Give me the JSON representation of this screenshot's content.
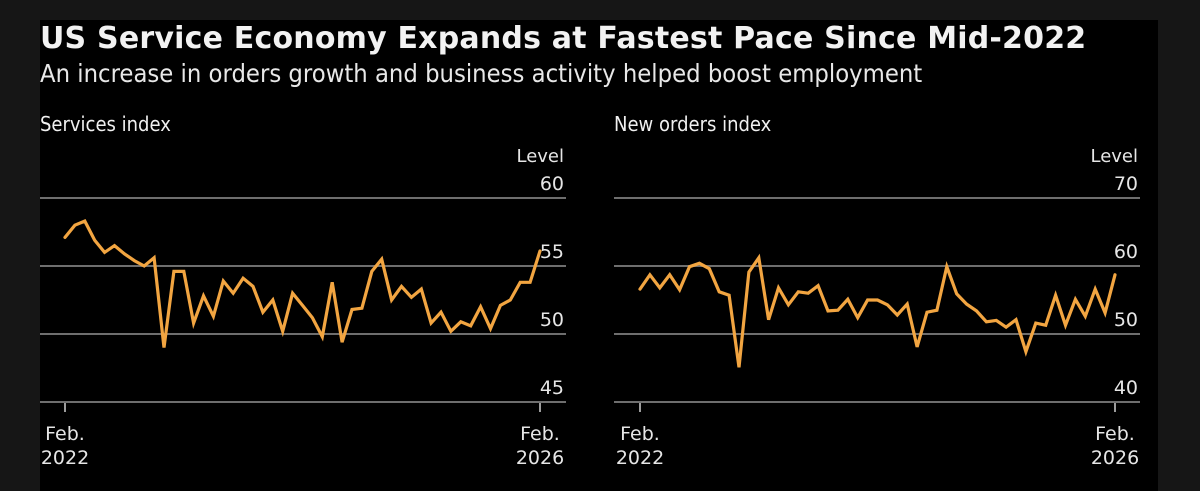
{
  "header": {
    "title": "US Service Economy Expands at Fastest Pace Since Mid-2022",
    "subtitle": "An increase in orders growth and business activity helped boost employment"
  },
  "colors": {
    "line": "#f2a541",
    "gridline": "#6e6e6e",
    "background": "#000000",
    "page_background": "#161616",
    "text": "#f0f0f0"
  },
  "chart_data": [
    {
      "type": "line",
      "title": "Services index",
      "ylabel": "Level",
      "xlabel": "",
      "ylim": [
        45,
        60
      ],
      "yticks": [
        "60",
        "55",
        "50",
        "45"
      ],
      "ytick_values": [
        60,
        55,
        50,
        45
      ],
      "xticks": [
        {
          "line1": "Feb.",
          "line2": "2022",
          "index": 0
        },
        {
          "line1": "Feb.",
          "line2": "2026",
          "index": 48
        }
      ],
      "grid": true,
      "legend": "none",
      "x_start": "Feb. 2022",
      "x_end": "Feb. 2026",
      "frequency": "monthly",
      "series": [
        {
          "name": "Services index",
          "values": [
            57.1,
            58.0,
            58.3,
            56.9,
            56.0,
            56.5,
            55.9,
            55.4,
            55.0,
            55.6,
            49.0,
            54.6,
            54.6,
            50.8,
            52.8,
            51.3,
            53.9,
            53.0,
            54.1,
            53.5,
            51.6,
            52.5,
            50.2,
            53.0,
            52.1,
            51.2,
            49.8,
            53.8,
            49.4,
            51.8,
            51.9,
            54.6,
            55.5,
            52.5,
            53.5,
            52.7,
            53.3,
            50.8,
            51.6,
            50.2,
            50.9,
            50.6,
            52.0,
            50.4,
            52.1,
            52.5,
            53.8,
            53.8,
            56.1
          ]
        }
      ]
    },
    {
      "type": "line",
      "title": "New orders index",
      "ylabel": "Level",
      "xlabel": "",
      "ylim": [
        40,
        70
      ],
      "yticks": [
        "70",
        "60",
        "50",
        "40"
      ],
      "ytick_values": [
        70,
        60,
        50,
        40
      ],
      "xticks": [
        {
          "line1": "Feb.",
          "line2": "2022",
          "index": 0
        },
        {
          "line1": "Feb.",
          "line2": "2026",
          "index": 48
        }
      ],
      "grid": true,
      "legend": "none",
      "x_start": "Feb. 2022",
      "x_end": "Feb. 2026",
      "frequency": "monthly",
      "series": [
        {
          "name": "New orders index",
          "values": [
            56.6,
            58.7,
            56.8,
            58.7,
            56.5,
            59.9,
            60.4,
            59.6,
            56.2,
            55.7,
            45.1,
            59.1,
            61.2,
            52.1,
            56.8,
            54.3,
            56.2,
            56.0,
            57.1,
            53.4,
            53.5,
            55.1,
            52.4,
            55.0,
            55.0,
            54.3,
            52.8,
            54.4,
            48.1,
            53.2,
            53.5,
            59.9,
            55.9,
            54.4,
            53.4,
            51.8,
            52.0,
            51.0,
            52.1,
            47.4,
            51.6,
            51.3,
            55.7,
            51.3,
            55.1,
            52.6,
            56.6,
            53.1,
            58.7
          ]
        }
      ]
    }
  ]
}
